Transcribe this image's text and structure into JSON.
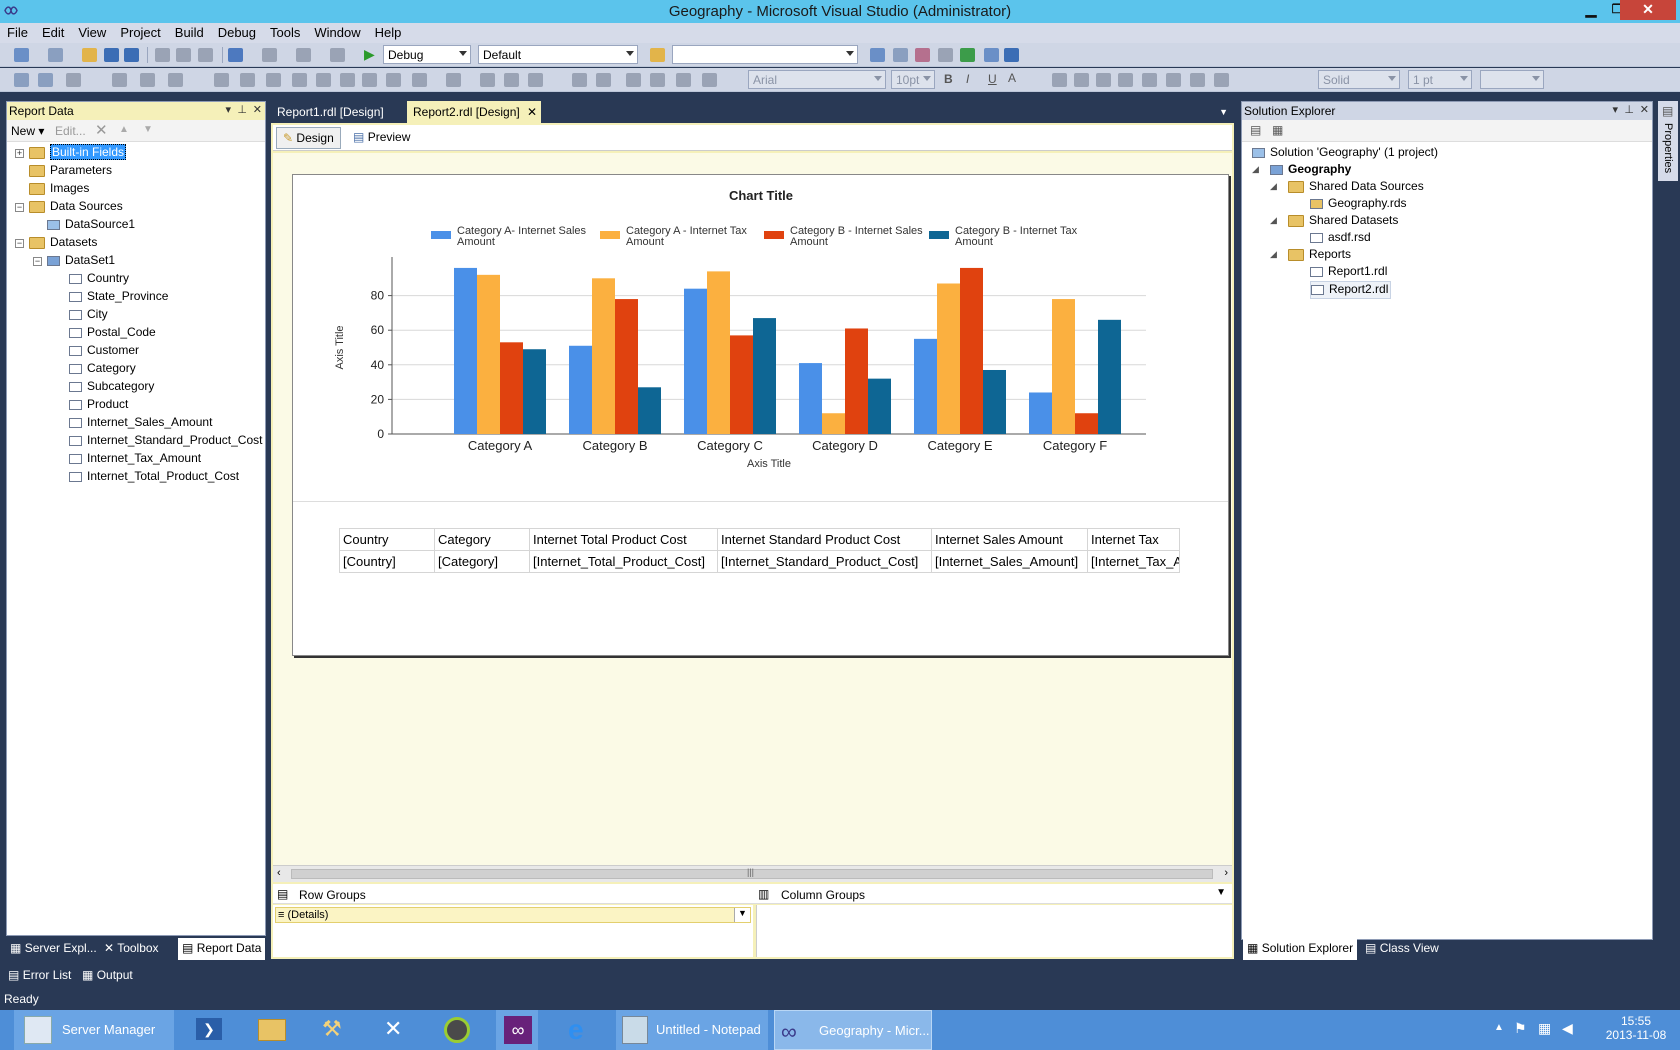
{
  "window": {
    "title": "Geography - Microsoft Visual Studio (Administrator)"
  },
  "menu": [
    "File",
    "Edit",
    "View",
    "Project",
    "Build",
    "Debug",
    "Tools",
    "Window",
    "Help"
  ],
  "toolbar": {
    "config": "Debug",
    "platform": "Default",
    "find_value": "",
    "font": "Arial",
    "font_size": "10pt",
    "border_style": "Solid",
    "border_width": "1 pt"
  },
  "report_data": {
    "title": "Report Data",
    "new_label": "New",
    "edit_label": "Edit...",
    "items": {
      "builtin": "Built-in Fields",
      "parameters": "Parameters",
      "images": "Images",
      "data_sources": "Data Sources",
      "datasource1": "DataSource1",
      "datasets": "Datasets",
      "dataset1": "DataSet1"
    },
    "fields": [
      "Country",
      "State_Province",
      "City",
      "Postal_Code",
      "Customer",
      "Category",
      "Subcategory",
      "Product",
      "Internet_Sales_Amount",
      "Internet_Standard_Product_Cost",
      "Internet_Tax_Amount",
      "Internet_Total_Product_Cost"
    ]
  },
  "bottom_left_tabs": [
    "Server Expl...",
    "Toolbox",
    "Report Data"
  ],
  "doc_tabs": [
    "Report1.rdl [Design]",
    "Report2.rdl [Design]"
  ],
  "view_tabs": [
    "Design",
    "Preview"
  ],
  "chart_data": {
    "type": "bar",
    "title": "Chart Title",
    "xlabel": "Axis Title",
    "ylabel": "Axis Title",
    "ylim": [
      0,
      100
    ],
    "yticks": [
      0,
      20,
      40,
      60,
      80
    ],
    "categories": [
      "Category A",
      "Category B",
      "Category C",
      "Category D",
      "Category E",
      "Category F"
    ],
    "series": [
      {
        "name": "Category A- Internet Sales Amount",
        "name_lines": [
          "Category A- Internet Sales",
          "Amount"
        ],
        "color": "#4a90e8",
        "values": [
          96,
          51,
          84,
          41,
          55,
          24
        ]
      },
      {
        "name": "Category A - Internet Tax Amount",
        "name_lines": [
          "Category A - Internet Tax",
          "Amount"
        ],
        "color": "#fbb040",
        "values": [
          92,
          90,
          94,
          12,
          87,
          78
        ]
      },
      {
        "name": "Category B - Internet Sales Amount",
        "name_lines": [
          "Category B - Internet Sales",
          "Amount"
        ],
        "color": "#e0420f",
        "values": [
          53,
          78,
          57,
          61,
          96,
          12
        ]
      },
      {
        "name": "Category B - Internet Tax Amount",
        "name_lines": [
          "Category B - Internet Tax",
          "Amount"
        ],
        "color": "#0e6694",
        "values": [
          49,
          27,
          67,
          32,
          37,
          66
        ]
      }
    ]
  },
  "table": {
    "headers": [
      "Country",
      "Category",
      "Internet Total Product Cost",
      "Internet Standard Product Cost",
      "Internet Sales Amount",
      "Internet Tax"
    ],
    "row": [
      "[Country]",
      "[Category]",
      "[Internet_Total_Product_Cost]",
      "[Internet_Standard_Product_Cost]",
      "[Internet_Sales_Amount]",
      "[Internet_Tax_A"
    ]
  },
  "groups": {
    "row_label": "Row Groups",
    "column_label": "Column Groups",
    "details": "(Details)"
  },
  "solution_explorer": {
    "title": "Solution Explorer",
    "solution": "Solution 'Geography' (1 project)",
    "project": "Geography",
    "shared_sources": "Shared Data Sources",
    "geography_rds": "Geography.rds",
    "shared_datasets": "Shared Datasets",
    "asdf_rsd": "asdf.rsd",
    "reports": "Reports",
    "report1": "Report1.rdl",
    "report2": "Report2.rdl"
  },
  "properties_label": "Properties",
  "bottom_right_tabs": [
    "Solution Explorer",
    "Class View"
  ],
  "bottom_tool_tabs": [
    "Error List",
    "Output"
  ],
  "status": "Ready",
  "taskbar": {
    "server_manager": "Server Manager",
    "notepad": "Untitled - Notepad",
    "vs": "Geography - Micr...",
    "time": "15:55",
    "date": "2013-11-08"
  }
}
